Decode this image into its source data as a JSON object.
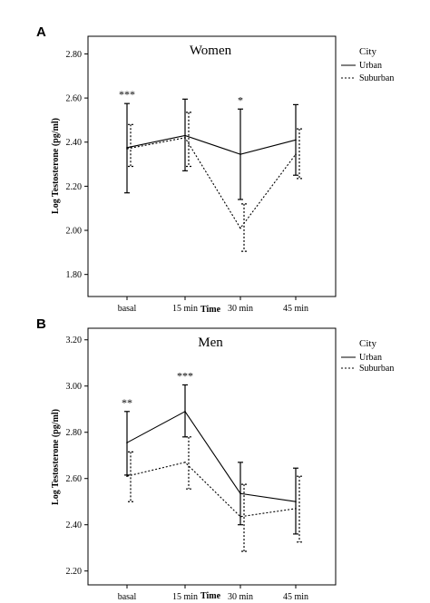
{
  "chart_data": [
    {
      "type": "line",
      "panel_label": "A",
      "title": "Women",
      "xlabel": "Time",
      "ylabel": "Log Testosterone (pg/ml)",
      "categories": [
        "basal",
        "15 min",
        "30 min",
        "45 min"
      ],
      "ylim": [
        1.7,
        2.88
      ],
      "yticks": [
        "1.80",
        "2.00",
        "2.20",
        "2.40",
        "2.60",
        "2.80"
      ],
      "legend_title": "City",
      "legend_position": "right",
      "significance": [
        "***",
        "",
        "*",
        ""
      ],
      "series": [
        {
          "name": "Urban",
          "style": "solid",
          "values": [
            2.375,
            2.43,
            2.345,
            2.41
          ],
          "err_low": [
            2.17,
            2.27,
            2.14,
            2.25
          ],
          "err_high": [
            2.575,
            2.595,
            2.55,
            2.57
          ]
        },
        {
          "name": "Suburban",
          "style": "dotted",
          "values": [
            2.37,
            2.42,
            2.01,
            2.345
          ],
          "err_low": [
            2.29,
            2.29,
            1.905,
            2.235
          ],
          "err_high": [
            2.48,
            2.535,
            2.12,
            2.46
          ]
        }
      ]
    },
    {
      "type": "line",
      "panel_label": "B",
      "title": "Men",
      "xlabel": "Time",
      "ylabel": "Log Testosterone (pg/ml)",
      "categories": [
        "basal",
        "15 min",
        "30 min",
        "45 min"
      ],
      "ylim": [
        2.14,
        3.25
      ],
      "yticks": [
        "2.20",
        "2.40",
        "2.60",
        "2.80",
        "3.00",
        "3.20"
      ],
      "legend_title": "City",
      "legend_position": "right",
      "significance": [
        "**",
        "***",
        "",
        ""
      ],
      "series": [
        {
          "name": "Urban",
          "style": "solid",
          "values": [
            2.755,
            2.89,
            2.535,
            2.5
          ],
          "err_low": [
            2.615,
            2.78,
            2.4,
            2.36
          ],
          "err_high": [
            2.89,
            3.005,
            2.67,
            2.645
          ]
        },
        {
          "name": "Suburban",
          "style": "dotted",
          "values": [
            2.61,
            2.67,
            2.435,
            2.47
          ],
          "err_low": [
            2.5,
            2.555,
            2.285,
            2.325
          ],
          "err_high": [
            2.715,
            2.78,
            2.575,
            2.61
          ]
        }
      ]
    }
  ]
}
